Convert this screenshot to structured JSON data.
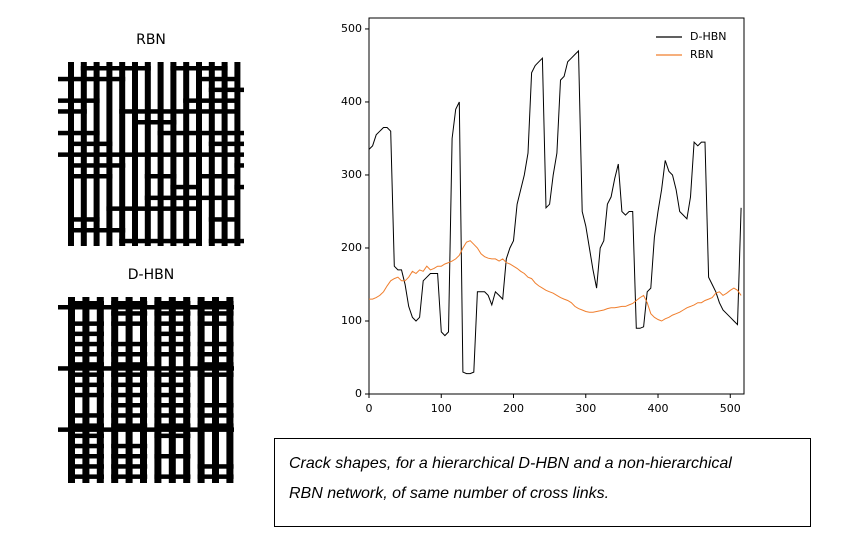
{
  "figures": [
    {
      "label": "RBN"
    },
    {
      "label": "D-HBN"
    }
  ],
  "caption": [
    "Crack shapes, for a hierarchical D-HBN and a non-hierarchical",
    "RBN network, of same number of cross links."
  ],
  "chart_data": {
    "type": "line",
    "x": [
      0,
      5,
      10,
      15,
      20,
      25,
      30,
      35,
      40,
      45,
      50,
      55,
      60,
      65,
      70,
      75,
      80,
      85,
      90,
      95,
      100,
      105,
      110,
      115,
      120,
      125,
      130,
      135,
      140,
      145,
      150,
      155,
      160,
      165,
      170,
      175,
      180,
      185,
      190,
      195,
      200,
      205,
      210,
      215,
      220,
      225,
      230,
      235,
      240,
      245,
      250,
      255,
      260,
      265,
      270,
      275,
      280,
      285,
      290,
      295,
      300,
      305,
      310,
      315,
      320,
      325,
      330,
      335,
      340,
      345,
      350,
      355,
      360,
      365,
      370,
      375,
      380,
      385,
      390,
      395,
      400,
      405,
      410,
      415,
      420,
      425,
      430,
      435,
      440,
      445,
      450,
      455,
      460,
      465,
      470,
      475,
      480,
      485,
      490,
      495,
      500,
      505,
      510,
      515
    ],
    "series": [
      {
        "name": "D-HBN",
        "color": "#000000",
        "values": [
          335,
          340,
          355,
          360,
          365,
          365,
          360,
          175,
          170,
          170,
          150,
          120,
          105,
          100,
          105,
          155,
          160,
          165,
          165,
          165,
          85,
          80,
          85,
          350,
          390,
          400,
          30,
          28,
          28,
          30,
          140,
          140,
          140,
          135,
          122,
          140,
          135,
          130,
          185,
          200,
          210,
          260,
          280,
          300,
          330,
          440,
          450,
          455,
          460,
          255,
          260,
          300,
          330,
          430,
          435,
          455,
          460,
          465,
          470,
          250,
          230,
          200,
          170,
          145,
          200,
          210,
          260,
          270,
          295,
          315,
          250,
          245,
          250,
          250,
          90,
          90,
          92,
          140,
          145,
          215,
          250,
          280,
          320,
          305,
          300,
          280,
          250,
          245,
          240,
          270,
          345,
          340,
          345,
          345,
          160,
          150,
          140,
          125,
          115,
          110,
          105,
          100,
          95,
          255
        ]
      },
      {
        "name": "RBN",
        "color": "#f07f2e",
        "values": [
          130,
          130,
          132,
          135,
          140,
          148,
          155,
          158,
          160,
          155,
          155,
          160,
          168,
          165,
          170,
          168,
          175,
          170,
          172,
          175,
          175,
          178,
          180,
          182,
          185,
          190,
          200,
          208,
          210,
          205,
          200,
          192,
          188,
          186,
          185,
          185,
          182,
          185,
          180,
          178,
          175,
          172,
          168,
          165,
          160,
          158,
          152,
          148,
          145,
          142,
          140,
          138,
          135,
          132,
          130,
          128,
          125,
          120,
          117,
          115,
          113,
          112,
          112,
          113,
          114,
          115,
          117,
          118,
          118,
          119,
          120,
          120,
          122,
          124,
          128,
          132,
          135,
          125,
          110,
          105,
          102,
          100,
          103,
          105,
          108,
          110,
          112,
          115,
          118,
          120,
          122,
          125,
          125,
          128,
          130,
          132,
          138,
          140,
          135,
          138,
          142,
          145,
          142,
          135
        ]
      }
    ],
    "xlim": [
      0,
      519
    ],
    "ylim": [
      0,
      515
    ],
    "xticks": [
      0,
      100,
      200,
      300,
      400,
      500
    ],
    "yticks": [
      0,
      100,
      200,
      300,
      400,
      500
    ],
    "legend": "upper right"
  }
}
